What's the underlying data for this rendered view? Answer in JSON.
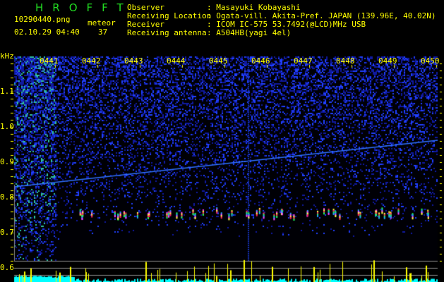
{
  "app": {
    "title": "HROFFT"
  },
  "file": {
    "name": "10290440.png",
    "datetime": "02.10.29 04:40"
  },
  "meteor": {
    "label": "meteor",
    "count": "37"
  },
  "info": [
    {
      "label": "Observer",
      "value": ": Masayuki Kobayashi"
    },
    {
      "label": "Receiving Location",
      "value": ": Ogata-vill. Akita-Pref. JAPAN (139.96E, 40.02N)"
    },
    {
      "label": "Receiver",
      "value": ": ICOM IC-575 53.7492(@LCD)MHz USB"
    },
    {
      "label": "Receiving antenna",
      "value": ": A504HB(yagi 4el)"
    }
  ],
  "axis": {
    "y_unit": "kHz",
    "y_ticks": [
      "1.1",
      "1.0",
      "0.9",
      "0.8",
      "0.7",
      "0.6"
    ],
    "x_ticks": [
      "0441",
      "0442",
      "0443",
      "0444",
      "0445",
      "0446",
      "0447",
      "0448",
      "0449",
      "0450"
    ]
  },
  "colors": {
    "text": "#ffff00",
    "title": "#22dd22",
    "noise": "#1020c0",
    "histogram": "#00ffff",
    "histogram_peak": "#ffff00"
  }
}
